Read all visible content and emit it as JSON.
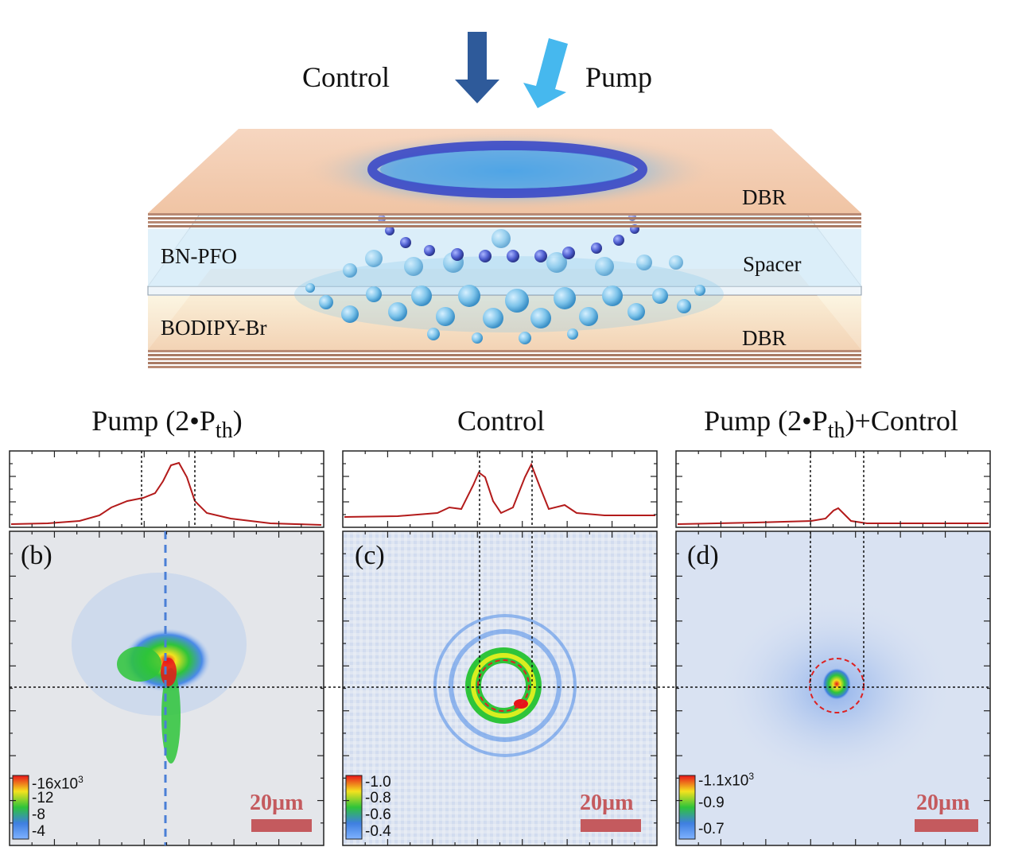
{
  "schematic": {
    "beam_labels": {
      "control": "Control",
      "pump": "Pump"
    },
    "layers": {
      "dbr_top": "DBR",
      "spacer": "Spacer",
      "dbr_bottom": "DBR",
      "bn_pfo": "BN-PFO",
      "bodipy": "BODIPY-Br"
    },
    "colors": {
      "control_arrow": "#2e5a9a",
      "pump_arrow": "#46b8ee",
      "dbr": "#f2c8a8",
      "spacer": "#d8ecf7"
    }
  },
  "panels": [
    {
      "id": "b",
      "letter": "(b)",
      "title_main": "Pump (2•P",
      "title_sub": "th",
      "title_end": ")",
      "colorbar": {
        "ticks": [
          "16",
          "12",
          "8",
          "4"
        ],
        "exponent_label": "x10",
        "exponent": "3"
      },
      "scale_label": "20µm"
    },
    {
      "id": "c",
      "letter": "(c)",
      "title_main": "Control",
      "title_sub": "",
      "title_end": "",
      "colorbar": {
        "ticks": [
          "1.0",
          "0.8",
          "0.6",
          "0.4"
        ],
        "exponent_label": "",
        "exponent": ""
      },
      "scale_label": "20µm"
    },
    {
      "id": "d",
      "letter": "(d)",
      "title_main": "Pump (2•P",
      "title_sub": "th",
      "title_end": ")+Control",
      "colorbar": {
        "ticks": [
          "1.1x10",
          "0.9",
          "0.7"
        ],
        "exponent_label": "",
        "exponent": "3"
      },
      "scale_label": "20µm"
    }
  ],
  "colors": {
    "profile_line": "#b31b1b",
    "scale_bar": "#c45a5e",
    "map_background": "#dfe6f2"
  }
}
